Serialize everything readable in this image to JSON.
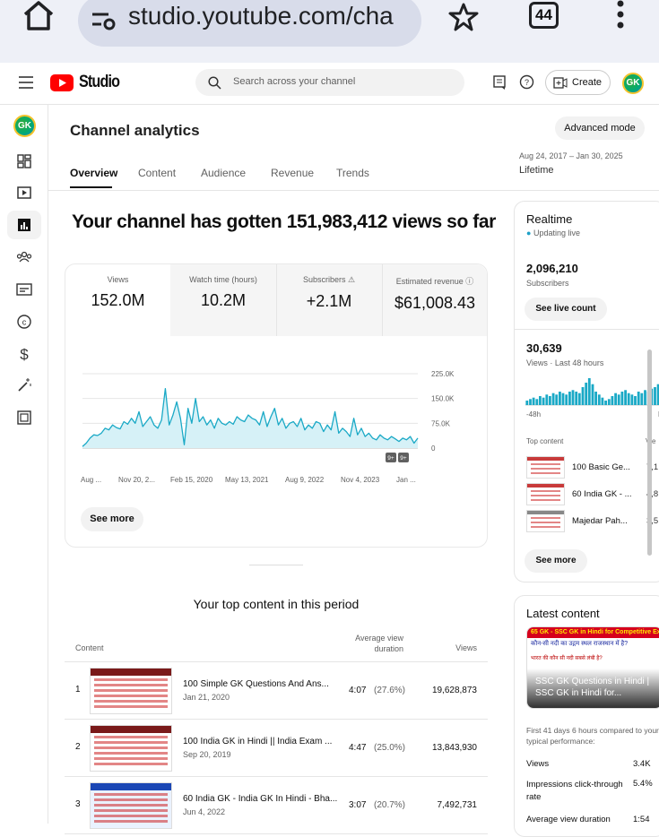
{
  "browser": {
    "url": "studio.youtube.com/cha",
    "tab_count": "44"
  },
  "header": {
    "brand": "Studio",
    "search_placeholder": "Search across your channel",
    "create_label": "Create",
    "avatar_text": "GK"
  },
  "page": {
    "title": "Channel analytics",
    "advanced_mode": "Advanced mode",
    "date_range": "Aug 24, 2017 – Jan 30, 2025",
    "date_label": "Lifetime",
    "tabs": [
      "Overview",
      "Content",
      "Audience",
      "Revenue",
      "Trends"
    ],
    "headline": "Your channel has gotten 151,983,412 views so far"
  },
  "metrics": [
    {
      "label": "Views",
      "value": "152.0M"
    },
    {
      "label": "Watch time (hours)",
      "value": "10.2M"
    },
    {
      "label": "Subscribers",
      "value": "+2.1M"
    },
    {
      "label": "Estimated revenue",
      "value": "$61,008.43"
    }
  ],
  "chart_data": {
    "type": "area",
    "x_tick_labels": [
      "Aug ...",
      "Nov 20, 2...",
      "Feb 15, 2020",
      "May 13, 2021",
      "Aug 9, 2022",
      "Nov 4, 2023",
      "Jan ..."
    ],
    "y_tick_labels": [
      "225.0K",
      "150.0K",
      "75.0K",
      "0"
    ],
    "ylim": [
      0,
      225000
    ],
    "values": [
      5000,
      15000,
      30000,
      40000,
      38000,
      45000,
      60000,
      55000,
      70000,
      62000,
      58000,
      80000,
      72000,
      90000,
      75000,
      110000,
      65000,
      80000,
      95000,
      70000,
      60000,
      85000,
      180000,
      70000,
      100000,
      140000,
      90000,
      10000,
      120000,
      75000,
      150000,
      80000,
      95000,
      70000,
      85000,
      60000,
      90000,
      75000,
      70000,
      80000,
      72000,
      95000,
      85000,
      80000,
      100000,
      90000,
      85000,
      70000,
      110000,
      65000,
      95000,
      120000,
      70000,
      90000,
      60000,
      75000,
      80000,
      65000,
      90000,
      55000,
      70000,
      60000,
      80000,
      75000,
      50000,
      70000,
      55000,
      110000,
      45000,
      60000,
      50000,
      35000,
      90000,
      40000,
      60000,
      35000,
      45000,
      30000,
      25000,
      40000,
      30000,
      25000,
      35000,
      28000,
      20000,
      30000,
      25000,
      35000,
      15000,
      30000
    ],
    "grid": true,
    "legend": "none",
    "color": "#1aa9c6",
    "fill_color": "#d6f1f7",
    "badges": [
      "9+",
      "9+"
    ]
  },
  "see_more": "See more",
  "top_content": {
    "title": "Your top content in this period",
    "columns": {
      "content": "Content",
      "avg": "Average view duration",
      "views": "Views"
    },
    "rows": [
      {
        "rank": "1",
        "title": "100 Simple GK Questions And Ans...",
        "date": "Jan 21, 2020",
        "avg": "4:07",
        "pct": "(27.6%)",
        "views": "19,628,873"
      },
      {
        "rank": "2",
        "title": "100 India GK in Hindi || India Exam ...",
        "date": "Sep 20, 2019",
        "avg": "4:47",
        "pct": "(25.0%)",
        "views": "13,843,930"
      },
      {
        "rank": "3",
        "title": "60 India GK - India GK In Hindi - Bha...",
        "date": "Jun 4, 2022",
        "avg": "3:07",
        "pct": "(20.7%)",
        "views": "7,492,731"
      }
    ]
  },
  "realtime": {
    "title": "Realtime",
    "status": "Updating live",
    "subs_value": "2,096,210",
    "subs_label": "Subscribers",
    "live_count_btn": "See live count",
    "views_value": "30,639",
    "views_label": "Views · Last 48 hours",
    "axis_left": "-48h",
    "axis_right": "N",
    "bars": [
      3,
      4,
      5,
      4,
      6,
      5,
      7,
      6,
      8,
      7,
      9,
      8,
      7,
      9,
      10,
      9,
      8,
      12,
      15,
      18,
      14,
      9,
      7,
      5,
      3,
      4,
      6,
      8,
      7,
      9,
      10,
      8,
      7,
      6,
      9,
      8,
      10,
      9,
      11,
      12,
      14
    ],
    "top_content_label": "Top content",
    "top_content_col": "Vie",
    "items": [
      {
        "title": "100 Basic Ge...",
        "views": "7,1"
      },
      {
        "title": "60 India GK - ...",
        "views": "4,8"
      },
      {
        "title": "Majedar Pah...",
        "views": "3,5"
      }
    ],
    "see_more": "See more"
  },
  "latest": {
    "title": "Latest content",
    "banner": "65 GK - SSC GK in Hindi for Competitive Exa",
    "q1": "कौन-सी नदी का उद्गम स्थल राजस्थान में है?",
    "q2": "भारत की कौन सी नदी सबसे लंबी है?",
    "video_title": "SSC GK Questions in Hindi | SSC GK in Hindi for...",
    "compare_text": "First 41 days 6 hours compared to your typical performance:",
    "stats": [
      {
        "label": "Views",
        "value": "3.4K"
      },
      {
        "label": "Impressions click-through rate",
        "value": "5.4%"
      },
      {
        "label": "Average view duration",
        "value": "1:54"
      }
    ]
  }
}
